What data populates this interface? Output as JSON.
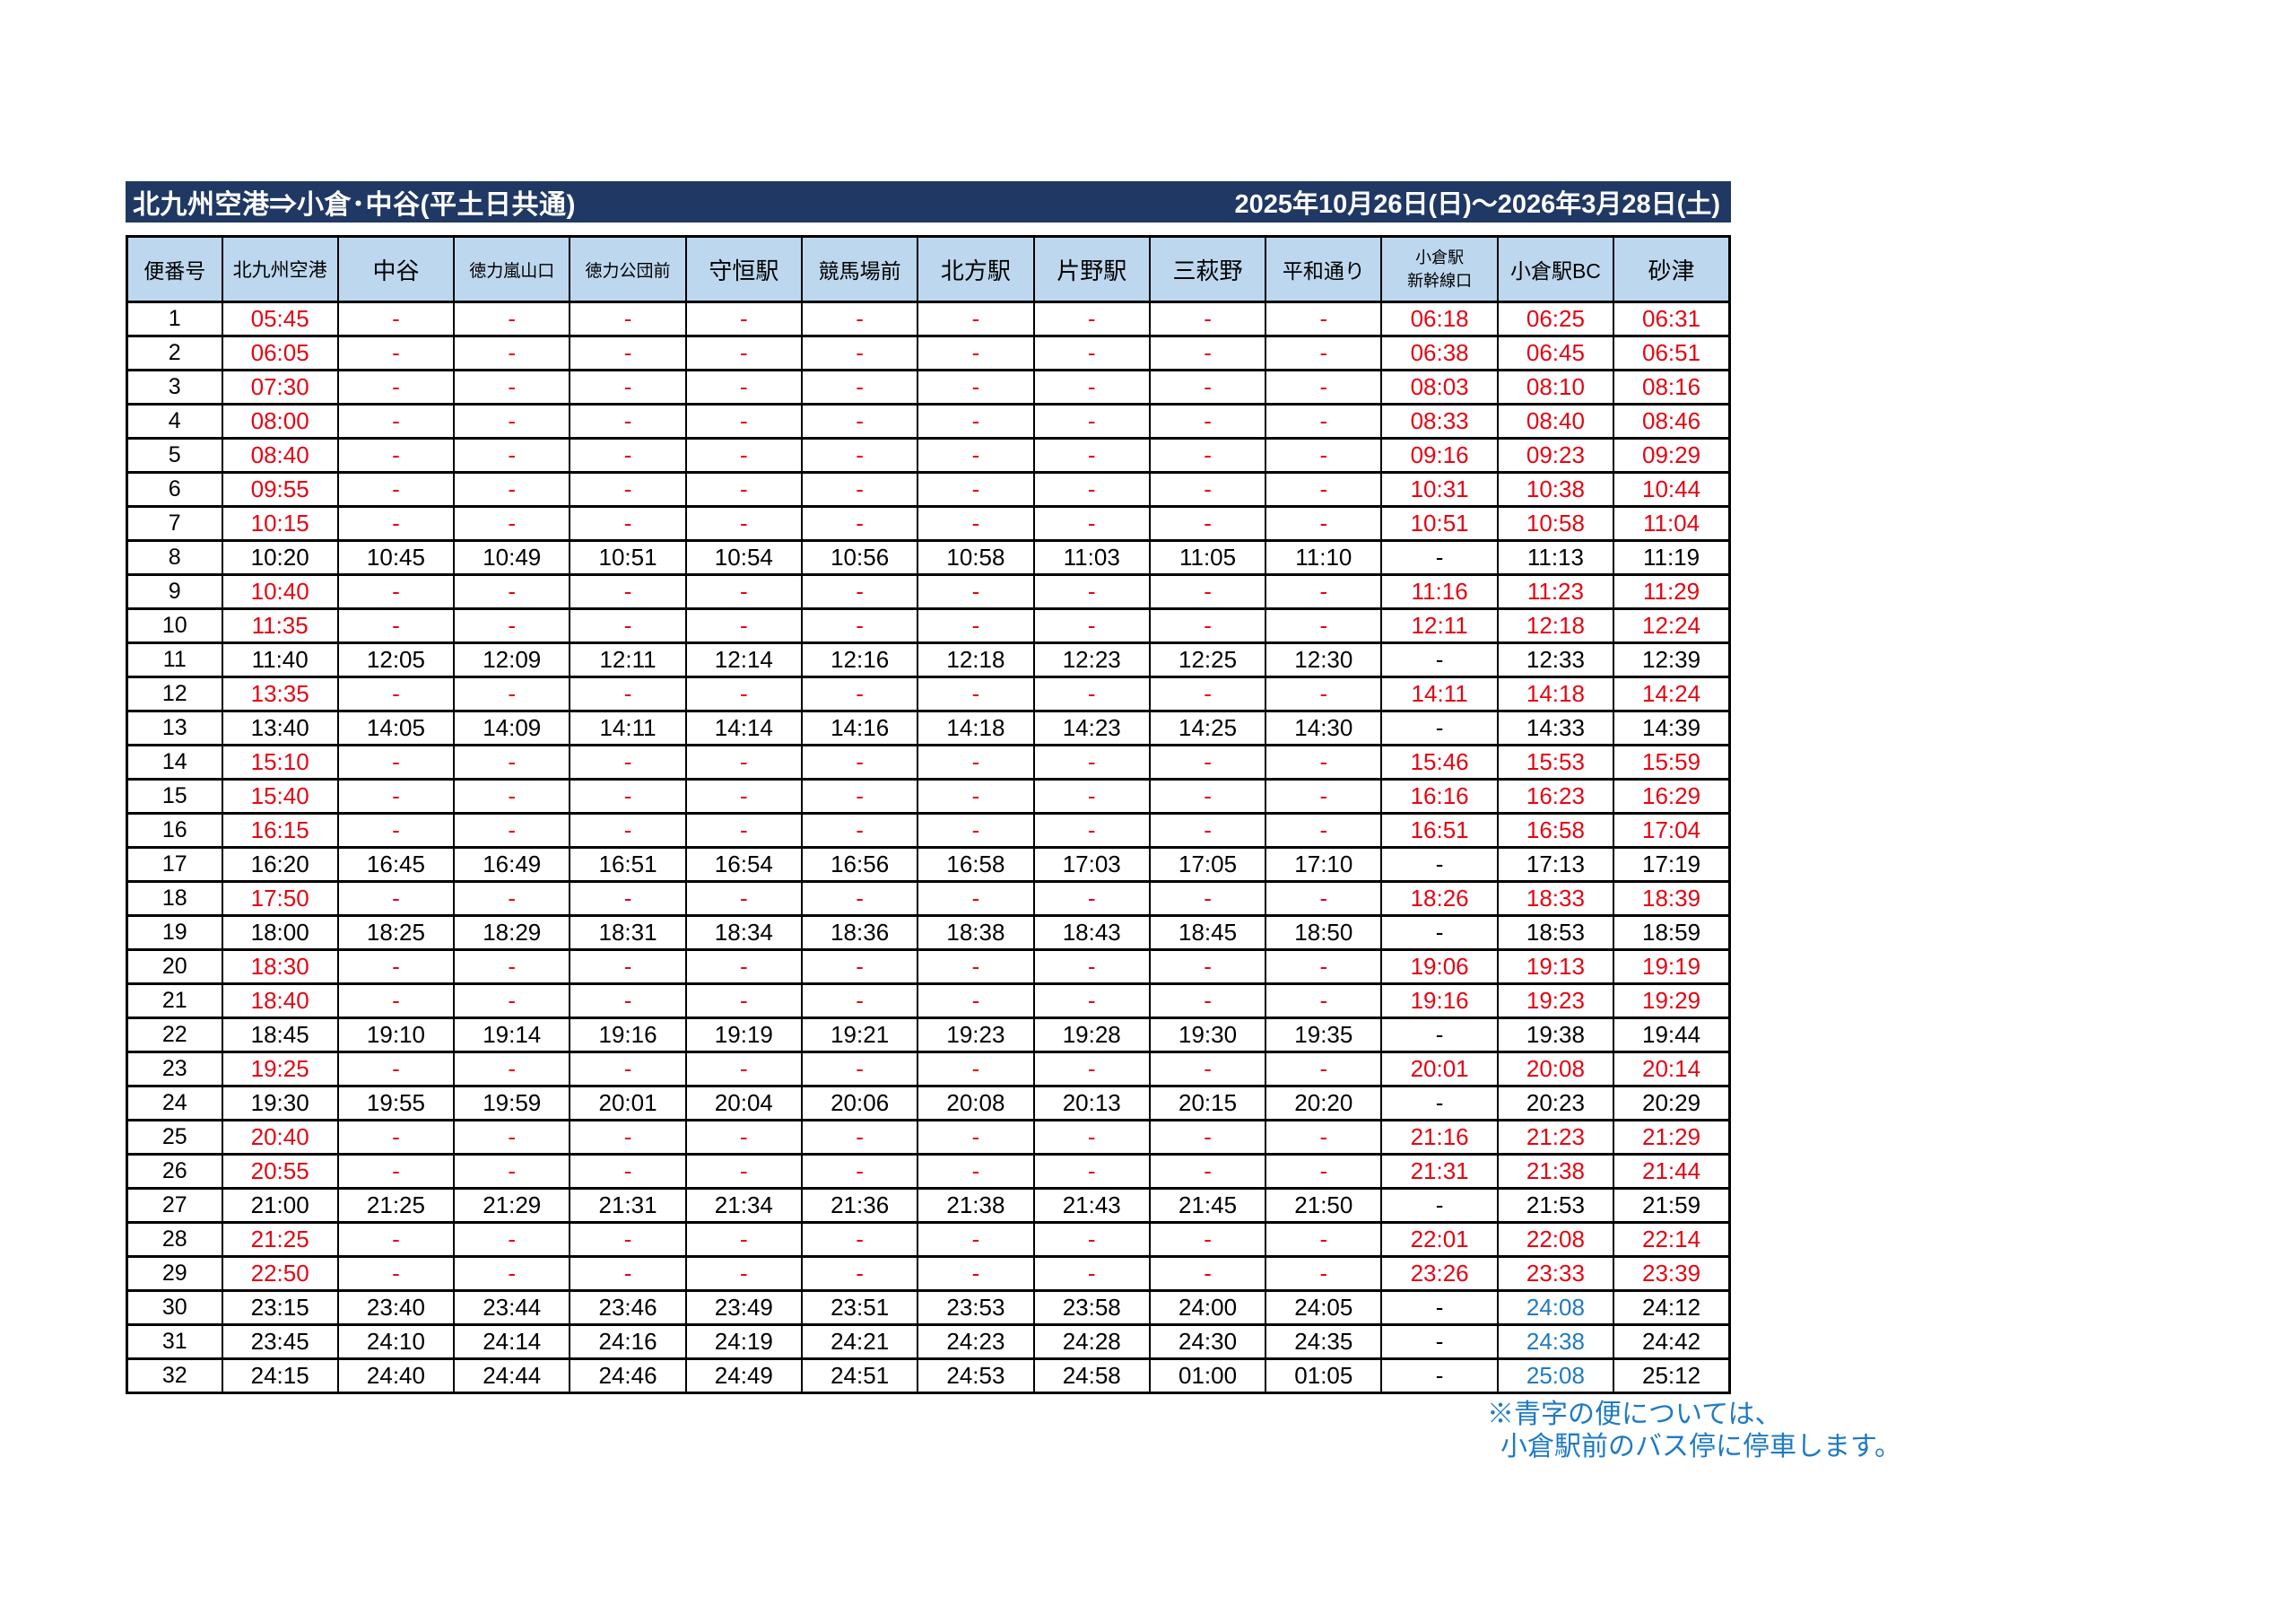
{
  "title_bar": {
    "route_title": "北九州空港⇒小倉･中谷(平土日共通)",
    "date_range": "2025年10月26日(日)～2026年3月28日(土)"
  },
  "colors": {
    "title_bar_bg": "#1F3864",
    "header_bg": "#BDD7EE",
    "express_time_red": "#E30613",
    "kokura_ekimae_blue": "#1F7AC4",
    "regular_time_black": "#000000"
  },
  "table": {
    "columns": [
      "便番号",
      "北九州空港",
      "中谷",
      "徳力嵐山口",
      "徳力公団前",
      "守恒駅",
      "競馬場前",
      "北方駅",
      "片野駅",
      "三萩野",
      "平和通り",
      "小倉駅|新幹線口",
      "小倉駅BC",
      "砂津"
    ],
    "rows": [
      {
        "no": "1",
        "color": "red",
        "times": [
          "05:45",
          "-",
          "-",
          "-",
          "-",
          "-",
          "-",
          "-",
          "-",
          "-",
          "06:18",
          "06:25",
          "06:31"
        ]
      },
      {
        "no": "2",
        "color": "red",
        "times": [
          "06:05",
          "-",
          "-",
          "-",
          "-",
          "-",
          "-",
          "-",
          "-",
          "-",
          "06:38",
          "06:45",
          "06:51"
        ]
      },
      {
        "no": "3",
        "color": "red",
        "times": [
          "07:30",
          "-",
          "-",
          "-",
          "-",
          "-",
          "-",
          "-",
          "-",
          "-",
          "08:03",
          "08:10",
          "08:16"
        ]
      },
      {
        "no": "4",
        "color": "red",
        "times": [
          "08:00",
          "-",
          "-",
          "-",
          "-",
          "-",
          "-",
          "-",
          "-",
          "-",
          "08:33",
          "08:40",
          "08:46"
        ]
      },
      {
        "no": "5",
        "color": "red",
        "times": [
          "08:40",
          "-",
          "-",
          "-",
          "-",
          "-",
          "-",
          "-",
          "-",
          "-",
          "09:16",
          "09:23",
          "09:29"
        ]
      },
      {
        "no": "6",
        "color": "red",
        "times": [
          "09:55",
          "-",
          "-",
          "-",
          "-",
          "-",
          "-",
          "-",
          "-",
          "-",
          "10:31",
          "10:38",
          "10:44"
        ]
      },
      {
        "no": "7",
        "color": "red",
        "times": [
          "10:15",
          "-",
          "-",
          "-",
          "-",
          "-",
          "-",
          "-",
          "-",
          "-",
          "10:51",
          "10:58",
          "11:04"
        ]
      },
      {
        "no": "8",
        "color": "black",
        "times": [
          "10:20",
          "10:45",
          "10:49",
          "10:51",
          "10:54",
          "10:56",
          "10:58",
          "11:03",
          "11:05",
          "11:10",
          "-",
          "11:13",
          "11:19"
        ]
      },
      {
        "no": "9",
        "color": "red",
        "times": [
          "10:40",
          "-",
          "-",
          "-",
          "-",
          "-",
          "-",
          "-",
          "-",
          "-",
          "11:16",
          "11:23",
          "11:29"
        ]
      },
      {
        "no": "10",
        "color": "red",
        "times": [
          "11:35",
          "-",
          "-",
          "-",
          "-",
          "-",
          "-",
          "-",
          "-",
          "-",
          "12:11",
          "12:18",
          "12:24"
        ]
      },
      {
        "no": "11",
        "color": "black",
        "times": [
          "11:40",
          "12:05",
          "12:09",
          "12:11",
          "12:14",
          "12:16",
          "12:18",
          "12:23",
          "12:25",
          "12:30",
          "-",
          "12:33",
          "12:39"
        ]
      },
      {
        "no": "12",
        "color": "red",
        "times": [
          "13:35",
          "-",
          "-",
          "-",
          "-",
          "-",
          "-",
          "-",
          "-",
          "-",
          "14:11",
          "14:18",
          "14:24"
        ]
      },
      {
        "no": "13",
        "color": "black",
        "times": [
          "13:40",
          "14:05",
          "14:09",
          "14:11",
          "14:14",
          "14:16",
          "14:18",
          "14:23",
          "14:25",
          "14:30",
          "-",
          "14:33",
          "14:39"
        ]
      },
      {
        "no": "14",
        "color": "red",
        "times": [
          "15:10",
          "-",
          "-",
          "-",
          "-",
          "-",
          "-",
          "-",
          "-",
          "-",
          "15:46",
          "15:53",
          "15:59"
        ]
      },
      {
        "no": "15",
        "color": "red",
        "times": [
          "15:40",
          "-",
          "-",
          "-",
          "-",
          "-",
          "-",
          "-",
          "-",
          "-",
          "16:16",
          "16:23",
          "16:29"
        ]
      },
      {
        "no": "16",
        "color": "red",
        "times": [
          "16:15",
          "-",
          "-",
          "-",
          "-",
          "-",
          "-",
          "-",
          "-",
          "-",
          "16:51",
          "16:58",
          "17:04"
        ]
      },
      {
        "no": "17",
        "color": "black",
        "times": [
          "16:20",
          "16:45",
          "16:49",
          "16:51",
          "16:54",
          "16:56",
          "16:58",
          "17:03",
          "17:05",
          "17:10",
          "-",
          "17:13",
          "17:19"
        ]
      },
      {
        "no": "18",
        "color": "red",
        "times": [
          "17:50",
          "-",
          "-",
          "-",
          "-",
          "-",
          "-",
          "-",
          "-",
          "-",
          "18:26",
          "18:33",
          "18:39"
        ]
      },
      {
        "no": "19",
        "color": "black",
        "times": [
          "18:00",
          "18:25",
          "18:29",
          "18:31",
          "18:34",
          "18:36",
          "18:38",
          "18:43",
          "18:45",
          "18:50",
          "-",
          "18:53",
          "18:59"
        ]
      },
      {
        "no": "20",
        "color": "red",
        "times": [
          "18:30",
          "-",
          "-",
          "-",
          "-",
          "-",
          "-",
          "-",
          "-",
          "-",
          "19:06",
          "19:13",
          "19:19"
        ]
      },
      {
        "no": "21",
        "color": "red",
        "times": [
          "18:40",
          "-",
          "-",
          "-",
          "-",
          "-",
          "-",
          "-",
          "-",
          "-",
          "19:16",
          "19:23",
          "19:29"
        ]
      },
      {
        "no": "22",
        "color": "black",
        "times": [
          "18:45",
          "19:10",
          "19:14",
          "19:16",
          "19:19",
          "19:21",
          "19:23",
          "19:28",
          "19:30",
          "19:35",
          "-",
          "19:38",
          "19:44"
        ]
      },
      {
        "no": "23",
        "color": "red",
        "times": [
          "19:25",
          "-",
          "-",
          "-",
          "-",
          "-",
          "-",
          "-",
          "-",
          "-",
          "20:01",
          "20:08",
          "20:14"
        ]
      },
      {
        "no": "24",
        "color": "black",
        "times": [
          "19:30",
          "19:55",
          "19:59",
          "20:01",
          "20:04",
          "20:06",
          "20:08",
          "20:13",
          "20:15",
          "20:20",
          "-",
          "20:23",
          "20:29"
        ]
      },
      {
        "no": "25",
        "color": "red",
        "times": [
          "20:40",
          "-",
          "-",
          "-",
          "-",
          "-",
          "-",
          "-",
          "-",
          "-",
          "21:16",
          "21:23",
          "21:29"
        ]
      },
      {
        "no": "26",
        "color": "red",
        "times": [
          "20:55",
          "-",
          "-",
          "-",
          "-",
          "-",
          "-",
          "-",
          "-",
          "-",
          "21:31",
          "21:38",
          "21:44"
        ]
      },
      {
        "no": "27",
        "color": "black",
        "times": [
          "21:00",
          "21:25",
          "21:29",
          "21:31",
          "21:34",
          "21:36",
          "21:38",
          "21:43",
          "21:45",
          "21:50",
          "-",
          "21:53",
          "21:59"
        ]
      },
      {
        "no": "28",
        "color": "red",
        "times": [
          "21:25",
          "-",
          "-",
          "-",
          "-",
          "-",
          "-",
          "-",
          "-",
          "-",
          "22:01",
          "22:08",
          "22:14"
        ]
      },
      {
        "no": "29",
        "color": "red",
        "times": [
          "22:50",
          "-",
          "-",
          "-",
          "-",
          "-",
          "-",
          "-",
          "-",
          "-",
          "23:26",
          "23:33",
          "23:39"
        ]
      },
      {
        "no": "30",
        "color": "black",
        "blue_cols": [
          11
        ],
        "times": [
          "23:15",
          "23:40",
          "23:44",
          "23:46",
          "23:49",
          "23:51",
          "23:53",
          "23:58",
          "24:00",
          "24:05",
          "-",
          "24:08",
          "24:12"
        ]
      },
      {
        "no": "31",
        "color": "black",
        "blue_cols": [
          11
        ],
        "times": [
          "23:45",
          "24:10",
          "24:14",
          "24:16",
          "24:19",
          "24:21",
          "24:23",
          "24:28",
          "24:30",
          "24:35",
          "-",
          "24:38",
          "24:42"
        ]
      },
      {
        "no": "32",
        "color": "black",
        "blue_cols": [
          11
        ],
        "times": [
          "24:15",
          "24:40",
          "24:44",
          "24:46",
          "24:49",
          "24:51",
          "24:53",
          "24:58",
          "01:00",
          "01:05",
          "-",
          "25:08",
          "25:12"
        ]
      }
    ]
  },
  "footnote": {
    "line1": "※青字の便については、",
    "line2": "小倉駅前のバス停に停車します。"
  }
}
